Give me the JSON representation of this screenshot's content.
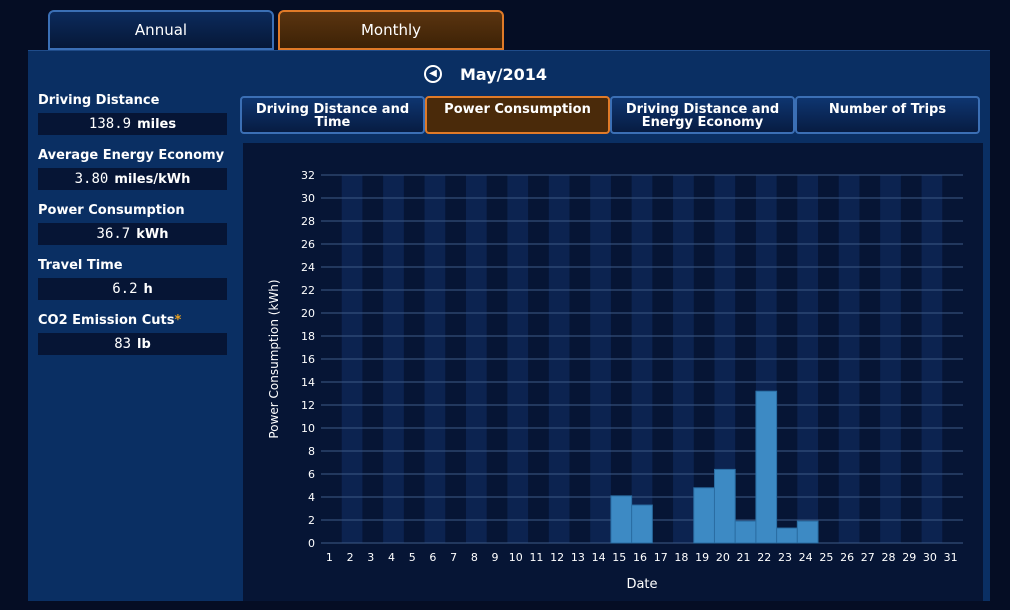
{
  "tabs": [
    {
      "label": "Annual",
      "active": false
    },
    {
      "label": "Monthly",
      "active": true
    }
  ],
  "period": {
    "label": "May/2014",
    "prev_icon": "chevron-left-circle-icon"
  },
  "stats": [
    {
      "label": "Driving Distance",
      "value": "138.9",
      "unit": "miles"
    },
    {
      "label": "Average Energy Economy",
      "value": "3.80",
      "unit": "miles/kWh"
    },
    {
      "label": "Power Consumption",
      "value": "36.7",
      "unit": "kWh"
    },
    {
      "label": "Travel Time",
      "value": "6.2",
      "unit": "h"
    },
    {
      "label": "CO2 Emission Cuts",
      "value": "83",
      "unit": "lb",
      "marker": "*"
    }
  ],
  "subtabs": [
    {
      "label": "Driving Distance and Time",
      "active": false
    },
    {
      "label": "Power Consumption",
      "active": true
    },
    {
      "label": "Driving Distance and Energy Economy",
      "active": false
    },
    {
      "label": "Number of Trips",
      "active": false
    }
  ],
  "colors": {
    "accent_active": "#e07a28",
    "bar": "#3d8ac4",
    "asterisk": "#e8a020"
  },
  "chart_data": {
    "type": "bar",
    "xlabel": "Date",
    "ylabel": "Power Consumption (kWh)",
    "ylim": [
      0,
      32
    ],
    "yticks": [
      0,
      2,
      4,
      6,
      8,
      10,
      12,
      14,
      16,
      18,
      20,
      22,
      24,
      26,
      28,
      30,
      32
    ],
    "grid": true,
    "categories": [
      "1",
      "2",
      "3",
      "4",
      "5",
      "6",
      "7",
      "8",
      "9",
      "10",
      "11",
      "12",
      "13",
      "14",
      "15",
      "16",
      "17",
      "18",
      "19",
      "20",
      "21",
      "22",
      "23",
      "24",
      "25",
      "26",
      "27",
      "28",
      "29",
      "30",
      "31"
    ],
    "values": [
      0,
      0,
      0,
      0,
      0,
      0,
      0,
      0,
      0,
      0,
      0,
      0,
      0,
      0,
      4.1,
      3.3,
      0,
      0,
      4.8,
      6.4,
      1.9,
      13.2,
      1.3,
      1.9,
      0,
      0,
      0,
      0,
      0,
      0,
      0
    ]
  }
}
